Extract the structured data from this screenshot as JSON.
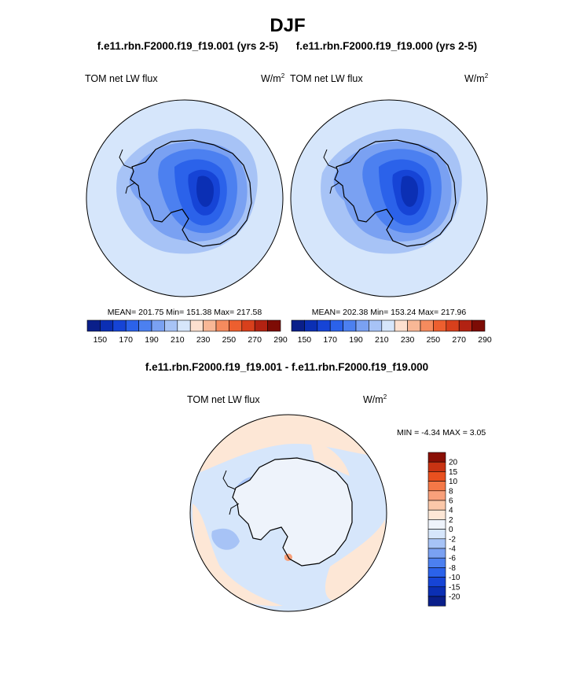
{
  "page_title": "DJF",
  "colors": {
    "abs_palette": [
      "#0a1f8a",
      "#0b2fb4",
      "#1644d6",
      "#2b62ea",
      "#4c80f0",
      "#7aa1f2",
      "#a7c3f6",
      "#d6e6fb",
      "#fde0cf",
      "#f8b796",
      "#f58b5e",
      "#ed5f2f",
      "#d8401c",
      "#b22212",
      "#7d0c05"
    ],
    "diff_palette": [
      "#0a1f8a",
      "#0b2fb4",
      "#1644d6",
      "#2b62ea",
      "#4c80f0",
      "#7aa1f2",
      "#a7c3f6",
      "#d6e6fb",
      "#eef3fb",
      "#fde7d6",
      "#fbc8a9",
      "#f8a07a",
      "#f47847",
      "#e8501f",
      "#c83313",
      "#8a0f05"
    ],
    "land_outline": "#000000",
    "ocean_abs": "#d6e6fb",
    "ocean_diff": "#d6e6fb"
  },
  "chart_data": [
    {
      "type": "heatmap",
      "projection": "south-polar-stereographic",
      "run_title": "f.e11.rbn.F2000.f19_f19.001 (yrs 2-5)",
      "variable_label": "TOM net LW flux",
      "units_label": "W/m",
      "units_sup": "2",
      "stats": "MEAN= 201.75  Min= 151.38  Max= 217.58",
      "mean": 201.75,
      "min": 151.38,
      "max": 217.58,
      "colorbar_levels": [
        145,
        150,
        160,
        170,
        180,
        190,
        200,
        210,
        220,
        230,
        240,
        250,
        260,
        270,
        280,
        290
      ],
      "colorbar_tick_labels": [
        "150",
        "170",
        "190",
        "210",
        "230",
        "250",
        "270",
        "290"
      ]
    },
    {
      "type": "heatmap",
      "projection": "south-polar-stereographic",
      "run_title": "f.e11.rbn.F2000.f19_f19.000 (yrs 2-5)",
      "variable_label": "TOM net LW flux",
      "units_label": "W/m",
      "units_sup": "2",
      "stats": "MEAN= 202.38  Min= 153.24  Max= 217.96",
      "mean": 202.38,
      "min": 153.24,
      "max": 217.96,
      "colorbar_levels": [
        145,
        150,
        160,
        170,
        180,
        190,
        200,
        210,
        220,
        230,
        240,
        250,
        260,
        270,
        280,
        290
      ],
      "colorbar_tick_labels": [
        "150",
        "170",
        "190",
        "210",
        "230",
        "250",
        "270",
        "290"
      ]
    },
    {
      "type": "heatmap",
      "projection": "south-polar-stereographic",
      "run_title": "f.e11.rbn.F2000.f19_f19.001 - f.e11.rbn.F2000.f19_f19.000",
      "variable_label": "TOM net LW flux",
      "units_label": "W/m",
      "units_sup": "2",
      "stats": "MIN =  -4.34 MAX =   3.05",
      "min": -4.34,
      "max": 3.05,
      "colorbar_levels": [
        -20,
        -15,
        -10,
        -8,
        -6,
        -4,
        -2,
        0,
        2,
        4,
        6,
        8,
        10,
        15,
        20
      ],
      "colorbar_tick_labels": [
        "20",
        "15",
        "10",
        "8",
        "6",
        "4",
        "2",
        "0",
        "-2",
        "-4",
        "-6",
        "-8",
        "-10",
        "-15",
        "-20"
      ]
    }
  ]
}
